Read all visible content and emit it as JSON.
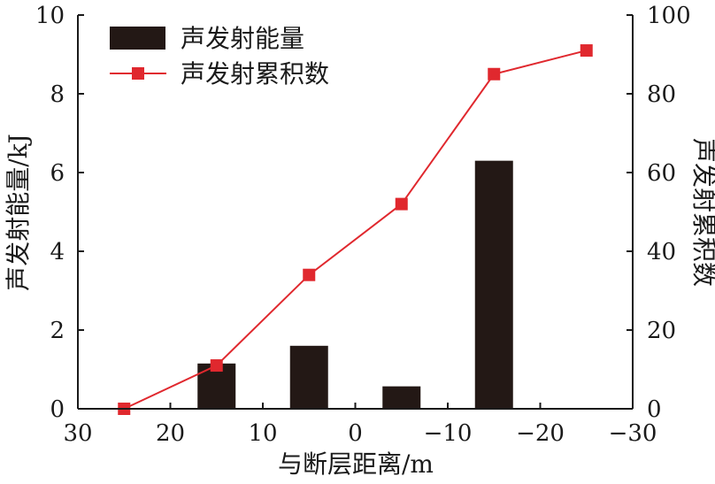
{
  "chart_data": {
    "type": "bar",
    "xlabel": "与断层距离/m",
    "ylabel_left": "声发射能量/kJ",
    "ylabel_right": "声发射累积数",
    "x_reversed": true,
    "xlim": [
      30,
      -30
    ],
    "xticks": [
      30,
      20,
      10,
      0,
      -10,
      -20,
      -30
    ],
    "xtick_labels": [
      "30",
      "20",
      "10",
      "0",
      "−10",
      "−20",
      "−30"
    ],
    "ylim_left": [
      0,
      10
    ],
    "yticks_left": [
      0,
      2,
      4,
      6,
      8,
      10
    ],
    "ylim_right": [
      0,
      100
    ],
    "yticks_right": [
      0,
      20,
      40,
      60,
      80,
      100
    ],
    "legend_position": "top-left",
    "series": [
      {
        "name": "声发射能量",
        "type": "bar",
        "axis": "left",
        "color": "#231815",
        "x": [
          15,
          5,
          -5,
          -15
        ],
        "values": [
          1.15,
          1.6,
          0.57,
          6.3
        ]
      },
      {
        "name": "声发射累积数",
        "type": "line",
        "marker": "square",
        "axis": "right",
        "color": "#e0282e",
        "x": [
          25,
          15,
          5,
          -5,
          -15,
          -25
        ],
        "values": [
          0,
          11,
          34,
          52,
          85,
          91
        ]
      }
    ]
  }
}
